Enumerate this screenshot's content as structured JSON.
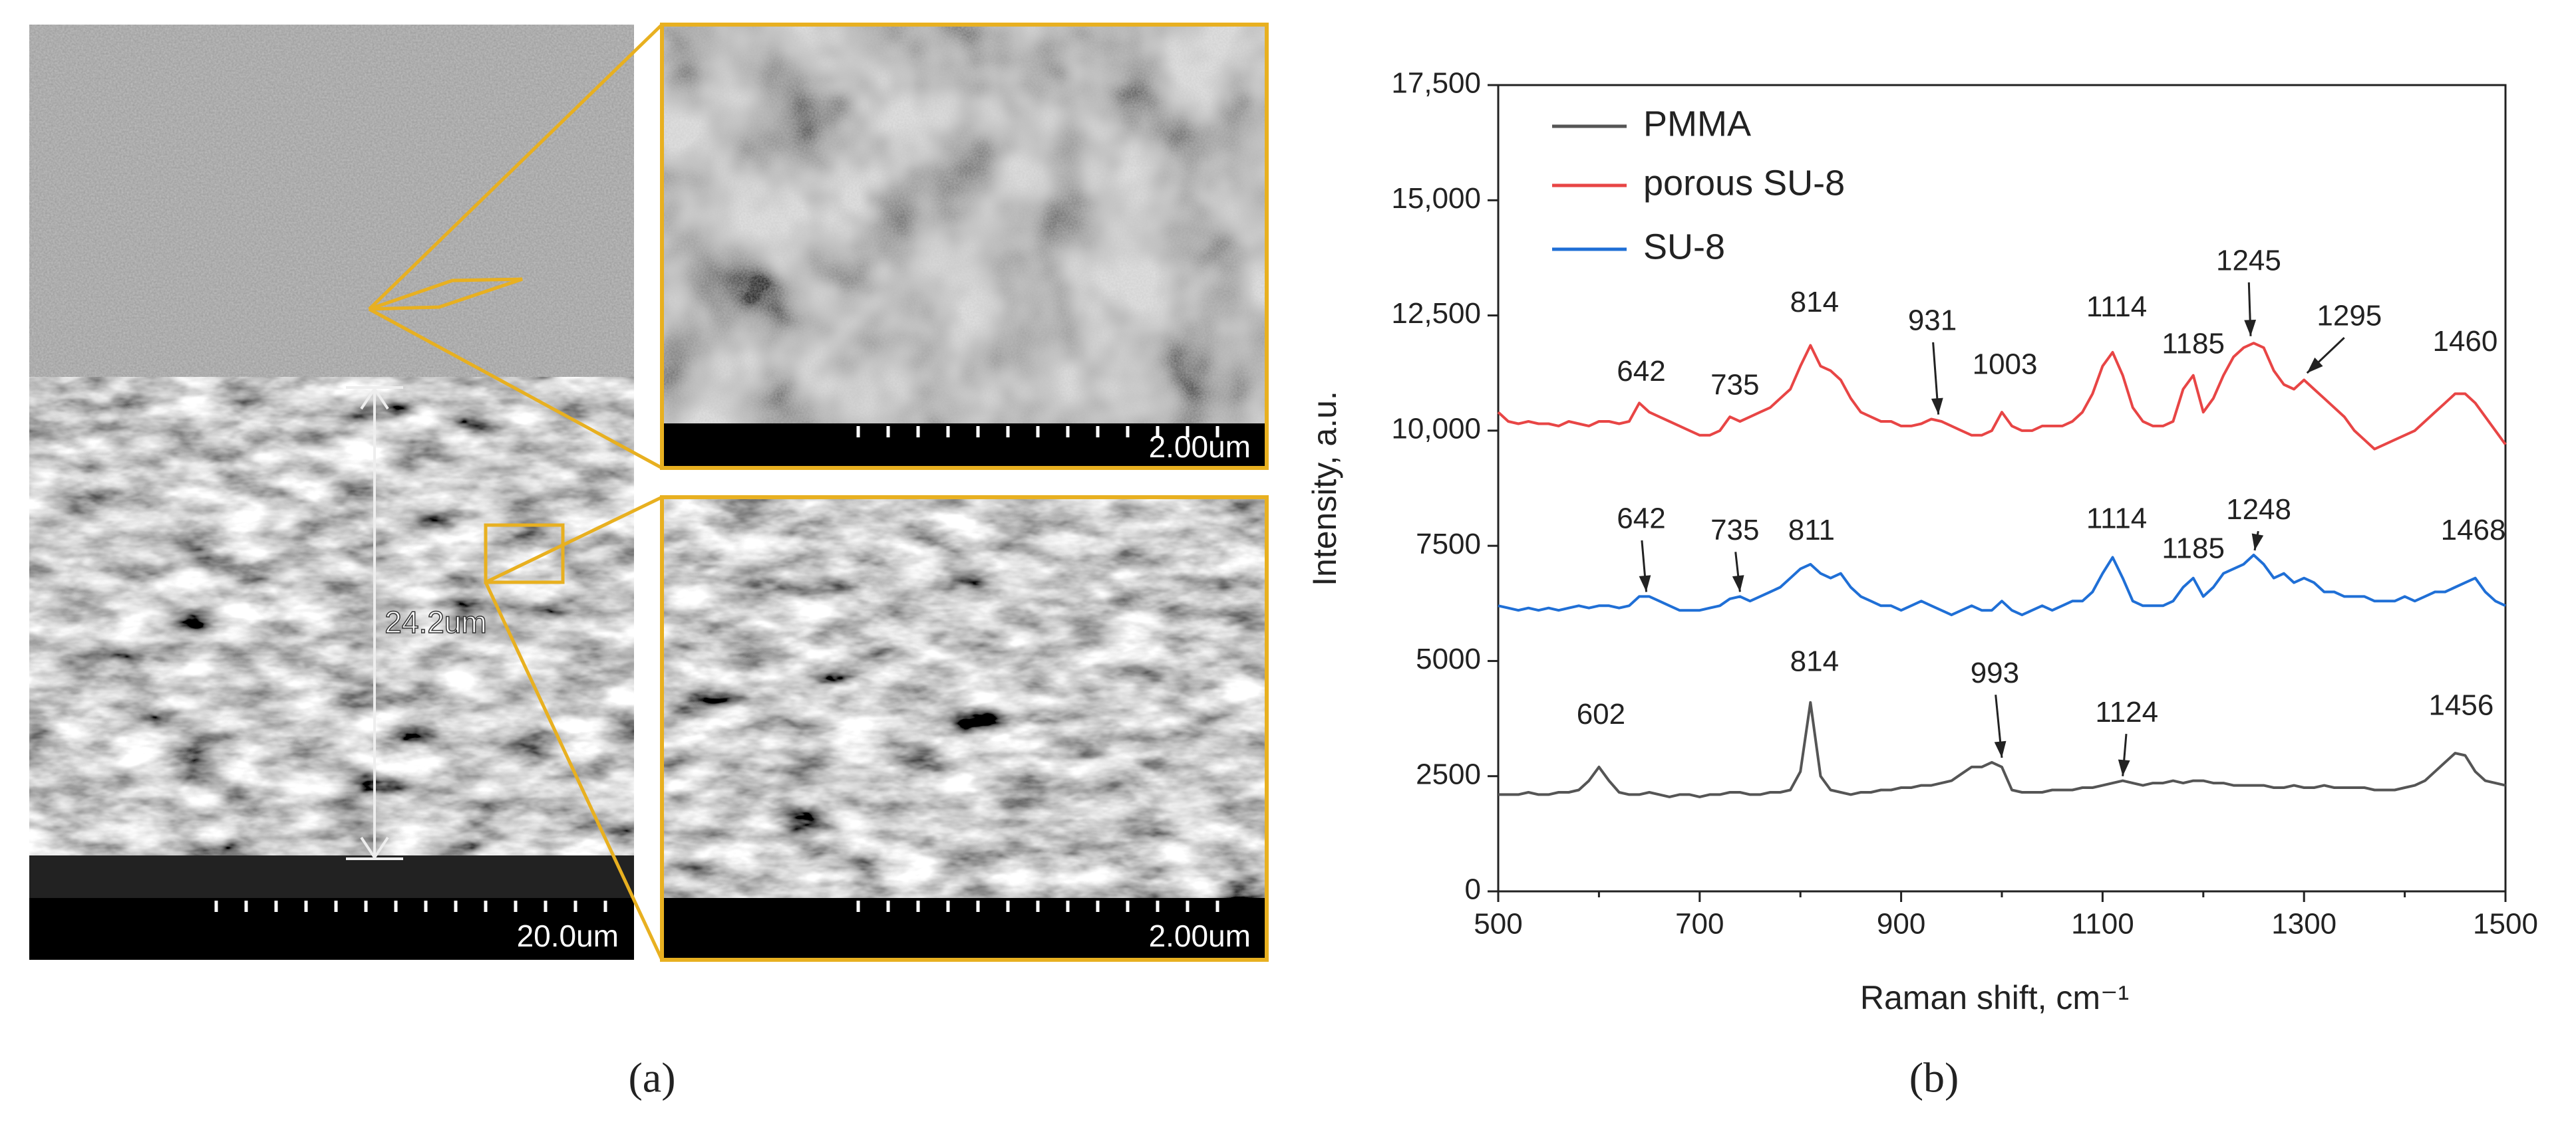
{
  "figure": {
    "panel_a": "(a)",
    "panel_b": "(b)",
    "sem_scale_main": "20.0um",
    "sem_scale_top": "2.00um",
    "sem_scale_bottom": "2.00um",
    "thickness": "24.2um"
  },
  "chart_data": {
    "type": "line",
    "xlabel": "Raman shift, cm⁻¹",
    "ylabel": "Intensity, a.u.",
    "xlim": [
      500,
      1500
    ],
    "ylim": [
      0,
      17500
    ],
    "xticks": [
      500,
      700,
      900,
      1100,
      1300,
      1500
    ],
    "xminorticks": [
      600,
      800,
      1000,
      1200,
      1400
    ],
    "yticks": [
      0,
      2500,
      5000,
      7500,
      {
        "value": 10000,
        "label": "10,000"
      },
      {
        "value": 12500,
        "label": "12,500"
      },
      {
        "value": 15000,
        "label": "15,000"
      },
      {
        "value": 17500,
        "label": "17,500"
      }
    ],
    "legend": "upper left",
    "x": [
      500,
      510,
      520,
      530,
      540,
      550,
      560,
      570,
      580,
      590,
      600,
      610,
      620,
      630,
      640,
      650,
      660,
      670,
      680,
      690,
      700,
      710,
      720,
      730,
      740,
      750,
      760,
      770,
      780,
      790,
      800,
      810,
      820,
      830,
      840,
      850,
      860,
      870,
      880,
      890,
      900,
      910,
      920,
      930,
      940,
      950,
      960,
      970,
      980,
      990,
      1000,
      1010,
      1020,
      1030,
      1040,
      1050,
      1060,
      1070,
      1080,
      1090,
      1100,
      1110,
      1120,
      1130,
      1140,
      1150,
      1160,
      1170,
      1180,
      1190,
      1200,
      1210,
      1220,
      1230,
      1240,
      1250,
      1260,
      1270,
      1280,
      1290,
      1300,
      1310,
      1320,
      1330,
      1340,
      1350,
      1360,
      1370,
      1380,
      1390,
      1400,
      1410,
      1420,
      1430,
      1440,
      1450,
      1460,
      1470,
      1480,
      1490,
      1500
    ],
    "series": [
      {
        "name": "PMMA",
        "color": "#555555",
        "values": [
          2100,
          2100,
          2100,
          2150,
          2100,
          2100,
          2150,
          2150,
          2200,
          2400,
          2700,
          2400,
          2150,
          2100,
          2100,
          2150,
          2100,
          2050,
          2100,
          2100,
          2050,
          2100,
          2100,
          2150,
          2150,
          2100,
          2100,
          2150,
          2150,
          2200,
          2600,
          4100,
          2500,
          2200,
          2150,
          2100,
          2150,
          2150,
          2200,
          2200,
          2250,
          2250,
          2300,
          2300,
          2350,
          2400,
          2550,
          2700,
          2700,
          2800,
          2700,
          2200,
          2150,
          2150,
          2150,
          2200,
          2200,
          2200,
          2250,
          2250,
          2300,
          2350,
          2400,
          2350,
          2300,
          2350,
          2350,
          2400,
          2350,
          2400,
          2400,
          2350,
          2350,
          2300,
          2300,
          2300,
          2300,
          2250,
          2250,
          2300,
          2250,
          2250,
          2300,
          2250,
          2250,
          2250,
          2250,
          2200,
          2200,
          2200,
          2250,
          2300,
          2400,
          2600,
          2800,
          3000,
          2950,
          2600,
          2400,
          2350,
          2300
        ]
      },
      {
        "name": " porous SU-8",
        "color": "#e84545",
        "values": [
          10400,
          10200,
          10150,
          10200,
          10150,
          10150,
          10100,
          10200,
          10150,
          10100,
          10200,
          10200,
          10150,
          10200,
          10600,
          10400,
          10300,
          10200,
          10100,
          10000,
          9900,
          9900,
          10000,
          10300,
          10200,
          10300,
          10400,
          10500,
          10700,
          10900,
          11400,
          11850,
          11400,
          11300,
          11100,
          10700,
          10400,
          10300,
          10200,
          10200,
          10100,
          10100,
          10150,
          10250,
          10200,
          10100,
          10000,
          9900,
          9900,
          10000,
          10400,
          10100,
          10000,
          10000,
          10100,
          10100,
          10100,
          10200,
          10400,
          10800,
          11400,
          11700,
          11200,
          10500,
          10200,
          10100,
          10100,
          10200,
          10900,
          11200,
          10400,
          10700,
          11200,
          11600,
          11800,
          11900,
          11800,
          11300,
          11000,
          10900,
          11100,
          10900,
          10700,
          10500,
          10300,
          10000,
          9800,
          9600,
          9700,
          9800,
          9900,
          10000,
          10200,
          10400,
          10600,
          10800,
          10800,
          10600,
          10300,
          10000,
          9700
        ]
      },
      {
        "name": "SU-8",
        "color": "#1f6fd6",
        "values": [
          6200,
          6150,
          6100,
          6150,
          6100,
          6150,
          6100,
          6150,
          6200,
          6150,
          6200,
          6200,
          6150,
          6200,
          6400,
          6400,
          6300,
          6200,
          6100,
          6100,
          6100,
          6150,
          6200,
          6350,
          6400,
          6300,
          6400,
          6500,
          6600,
          6800,
          7000,
          7100,
          6900,
          6800,
          6900,
          6600,
          6400,
          6300,
          6200,
          6200,
          6100,
          6200,
          6300,
          6200,
          6100,
          6000,
          6100,
          6200,
          6100,
          6100,
          6300,
          6100,
          6000,
          6100,
          6200,
          6100,
          6200,
          6300,
          6300,
          6500,
          6900,
          7250,
          6800,
          6300,
          6200,
          6200,
          6200,
          6300,
          6600,
          6800,
          6400,
          6600,
          6900,
          7000,
          7100,
          7300,
          7100,
          6800,
          6900,
          6700,
          6800,
          6700,
          6500,
          6500,
          6400,
          6400,
          6400,
          6300,
          6300,
          6300,
          6400,
          6300,
          6400,
          6500,
          6500,
          6600,
          6700,
          6800,
          6500,
          6300,
          6200
        ]
      }
    ],
    "annotations": [
      "642",
      "735",
      "814",
      "931",
      "1003",
      "1114",
      "1185",
      "1245",
      "1295",
      "1460",
      "642",
      "735",
      "811",
      "1114",
      "1185",
      "1248",
      "1468",
      "602",
      "814",
      "993",
      "1124",
      "1456"
    ]
  }
}
